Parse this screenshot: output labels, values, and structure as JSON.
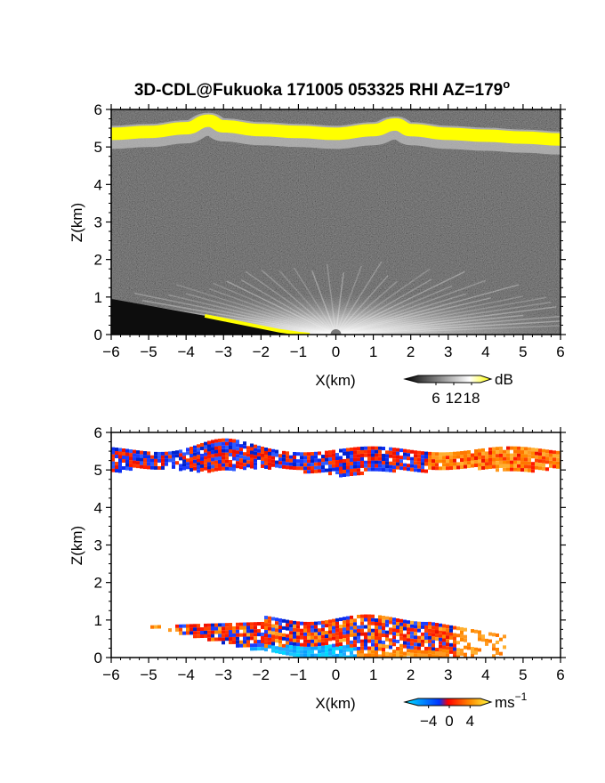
{
  "title": "3D-CDL@Fukuoka 171005 053325 RHI AZ=179",
  "title_superscript": "o",
  "chart_data": [
    {
      "type": "heatmap",
      "name": "backscatter",
      "xlabel": "X(km)",
      "ylabel": "Z(km)",
      "xlim": [
        -6,
        6
      ],
      "ylim": [
        0,
        6
      ],
      "xticks": [
        "-6",
        "-5",
        "-4",
        "-3",
        "-2",
        "-1",
        "0",
        "1",
        "2",
        "3",
        "4",
        "5",
        "6"
      ],
      "yticks": [
        "0",
        "1",
        "2",
        "3",
        "4",
        "5",
        "6"
      ],
      "colorbar": {
        "unit": "dB",
        "ticks": [
          "6",
          "12",
          "18"
        ],
        "tick_values": [
          6,
          12,
          18
        ],
        "range": [
          0,
          21
        ],
        "colors": [
          "#000000",
          "#ffffff",
          "#ffff00"
        ]
      },
      "cloud_layer": {
        "x": [
          -6,
          -5,
          -4,
          -3.4,
          -3,
          -2,
          -1,
          0,
          1,
          1.6,
          2,
          3,
          4,
          5,
          6
        ],
        "z": [
          5.35,
          5.4,
          5.5,
          5.7,
          5.55,
          5.45,
          5.4,
          5.35,
          5.45,
          5.6,
          5.45,
          5.35,
          5.3,
          5.25,
          5.2
        ]
      },
      "ground_echo": {
        "x": [
          -3.5,
          -3,
          -2.5,
          -2,
          -1.5,
          -1,
          -0.7
        ],
        "z": [
          0.5,
          0.4,
          0.3,
          0.2,
          0.1,
          0.03,
          0
        ]
      }
    },
    {
      "type": "heatmap",
      "name": "doppler_velocity",
      "xlabel": "X(km)",
      "ylabel": "Z(km)",
      "xlim": [
        -6,
        6
      ],
      "ylim": [
        0,
        6
      ],
      "xticks": [
        "-6",
        "-5",
        "-4",
        "-3",
        "-2",
        "-1",
        "0",
        "1",
        "2",
        "3",
        "4",
        "5",
        "6"
      ],
      "yticks": [
        "0",
        "1",
        "2",
        "3",
        "4",
        "5",
        "6"
      ],
      "colorbar": {
        "unit": "ms",
        "unit_superscript": "-1",
        "ticks": [
          "-4",
          "0",
          "4"
        ],
        "tick_values": [
          -4,
          0,
          4
        ],
        "range": [
          -6,
          6
        ],
        "colors": [
          "#00e5ff",
          "#0033ff",
          "#ff0000",
          "#ff8800",
          "#ffff44"
        ]
      },
      "cloud_layer": {
        "x_range": [
          -6,
          6
        ],
        "z_range": [
          4.7,
          5.9
        ],
        "segments": [
          {
            "x": [
              -6,
              -0.5
            ],
            "velocity": "mixed-negative-positive"
          },
          {
            "x": [
              -0.5,
              2.5
            ],
            "velocity": "mixed"
          },
          {
            "x": [
              2.5,
              6
            ],
            "velocity": "positive"
          }
        ]
      },
      "boundary_layer": {
        "x_range": [
          -5,
          4.5
        ],
        "z_range": [
          0,
          1.2
        ]
      }
    }
  ]
}
